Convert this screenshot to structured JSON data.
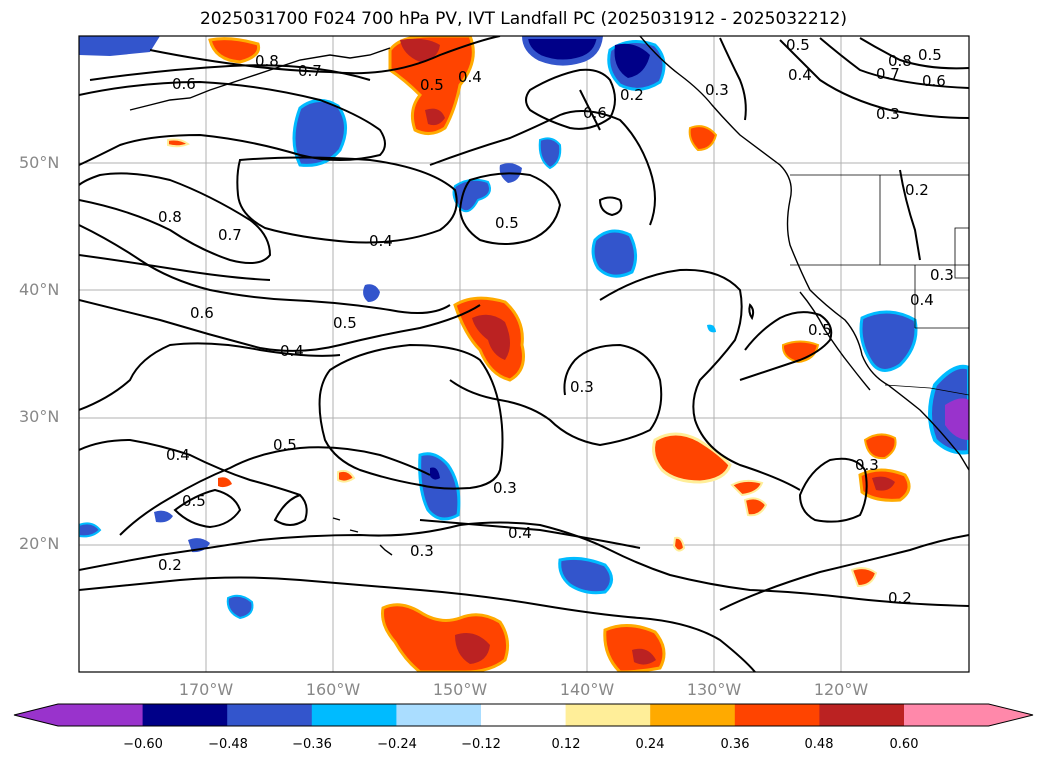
{
  "title": "2025031700 F024 700 hPa PV, IVT Landfall PC (2025031912 - 2025032212)",
  "lat_labels": [
    "50°N",
    "40°N",
    "30°N",
    "20°N"
  ],
  "lon_labels": [
    "170°W",
    "160°W",
    "150°W",
    "140°W",
    "130°W",
    "120°W"
  ],
  "colorbar": {
    "ticks": [
      "−0.60",
      "−0.48",
      "−0.36",
      "−0.24",
      "−0.12",
      "0.12",
      "0.24",
      "0.36",
      "0.48",
      "0.60"
    ],
    "colors": [
      "#9933cc",
      "#000088",
      "#3355cc",
      "#00bbff",
      "#aaddff",
      "#ffffff",
      "#ffee99",
      "#ffaa00",
      "#ff4400",
      "#bb2222",
      "#ff88aa"
    ]
  },
  "contour_labels": [
    "0.8",
    "0.7",
    "0.6",
    "0.5",
    "0.4",
    "0.5",
    "0.6",
    "0.5",
    "0.4",
    "0.8",
    "0.7",
    "0.6",
    "0.3",
    "0.2",
    "0.8",
    "0.7",
    "0.4",
    "0.5",
    "0.6",
    "0.5",
    "0.4",
    "0.5",
    "0.3",
    "0.4",
    "0.5",
    "0.3",
    "0.4",
    "0.3",
    "0.2",
    "0.5",
    "0.3",
    "0.2",
    "0.3",
    "0.2",
    "0.4",
    "0.3"
  ],
  "map": {
    "lon_range": [
      -180,
      -110
    ],
    "lat_range": [
      10,
      60
    ],
    "grid": true,
    "coastline": true,
    "state_borders": true
  }
}
